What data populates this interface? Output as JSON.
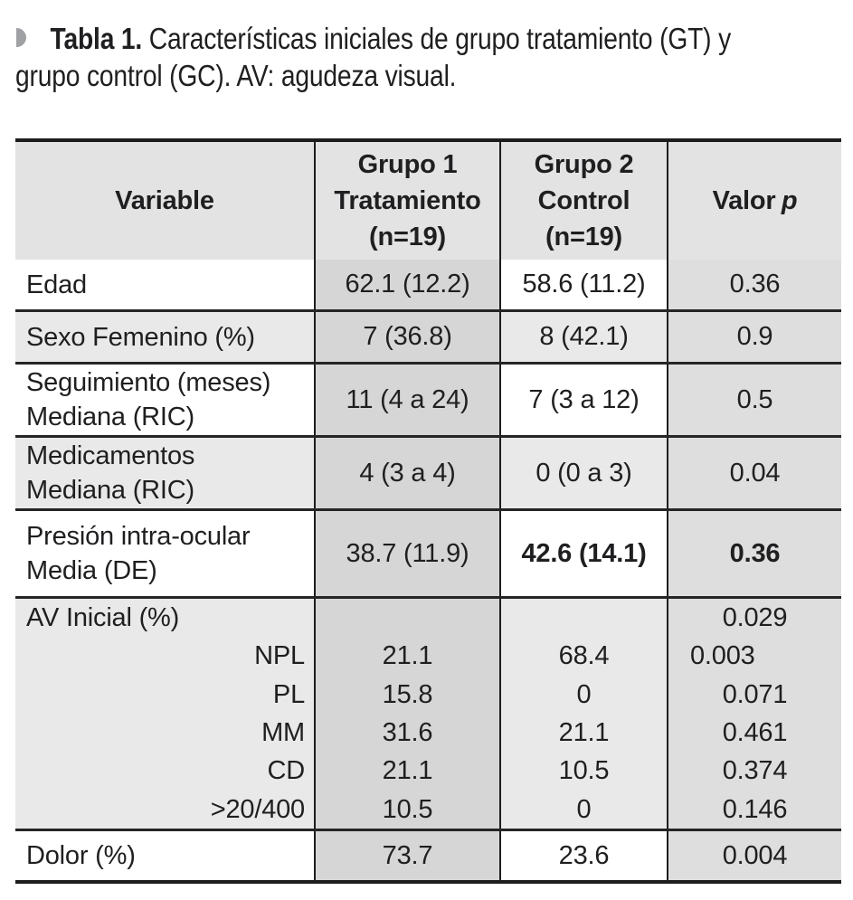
{
  "caption": {
    "bullet_icon": "half-circle-bullet",
    "bold": "Tabla 1.",
    "line1_rest": " Características iniciales de grupo tratamiento (GT) y",
    "line2": "grupo control (GC). AV: agudeza visual."
  },
  "colors": {
    "text": "#1f1f21",
    "rule": "#1d1d1d",
    "header_bg": "#e3e3e3",
    "row_alt_bg": "#e9e9e9",
    "treatment_col_bg": "#d6d6d6",
    "p_col_bg": "#dedede",
    "bullet": "#9fa1a4"
  },
  "table": {
    "header": {
      "variable": "Variable",
      "group1_lines": [
        "Grupo 1",
        "Tratamiento",
        "(n=19)"
      ],
      "group2_lines": [
        "Grupo 2",
        "Control",
        "(n=19)"
      ],
      "p_label": "Valor",
      "p_italic": "p"
    },
    "rows": [
      {
        "type": "simple",
        "shade": "white",
        "variable_lines": [
          "Edad"
        ],
        "g1": "62.1 (12.2)",
        "g2": "58.6 (11.2)",
        "p": "0.36"
      },
      {
        "type": "simple",
        "shade": "gray",
        "variable_lines": [
          "Sexo Femenino (%)"
        ],
        "g1": "7 (36.8)",
        "g2": "8 (42.1)",
        "p": "0.9"
      },
      {
        "type": "simple",
        "shade": "white",
        "variable_lines": [
          "Seguimiento (meses)",
          "Mediana (RIC)"
        ],
        "g1": "11 (4 a 24)",
        "g2": "7 (3 a 12)",
        "p": "0.5"
      },
      {
        "type": "simple",
        "shade": "gray",
        "variable_lines": [
          "Medicamentos",
          "Mediana (RIC)"
        ],
        "g1": "4 (3 a 4)",
        "g2": "0 (0 a 3)",
        "p": "0.04"
      },
      {
        "type": "simple",
        "shade": "white",
        "variable_lines": [
          "Presión intra-ocular",
          "Media (DE)"
        ],
        "g1": "38.7 (11.9)",
        "g2": "42.6 (14.1)",
        "p": "0.36",
        "g2_bold": true,
        "p_bold": true
      },
      {
        "type": "group",
        "shade": "gray",
        "label": "AV Inicial (%)",
        "p": "0.029",
        "items": [
          {
            "label": "NPL",
            "g1": "21.1",
            "g2": "68.4",
            "p": "0.003",
            "p_align": "left"
          },
          {
            "label": "PL",
            "g1": "15.8",
            "g2": "0",
            "p": "0.071"
          },
          {
            "label": "MM",
            "g1": "31.6",
            "g2": "21.1",
            "p": "0.461"
          },
          {
            "label": "CD",
            "g1": "21.1",
            "g2": "10.5",
            "p": "0.374"
          },
          {
            "label": ">20/400",
            "g1": "10.5",
            "g2": "0",
            "p": "0.146"
          }
        ]
      },
      {
        "type": "simple",
        "shade": "white",
        "variable_lines": [
          "Dolor (%)"
        ],
        "g1": "73.7",
        "g2": "23.6",
        "p": "0.004"
      }
    ]
  }
}
